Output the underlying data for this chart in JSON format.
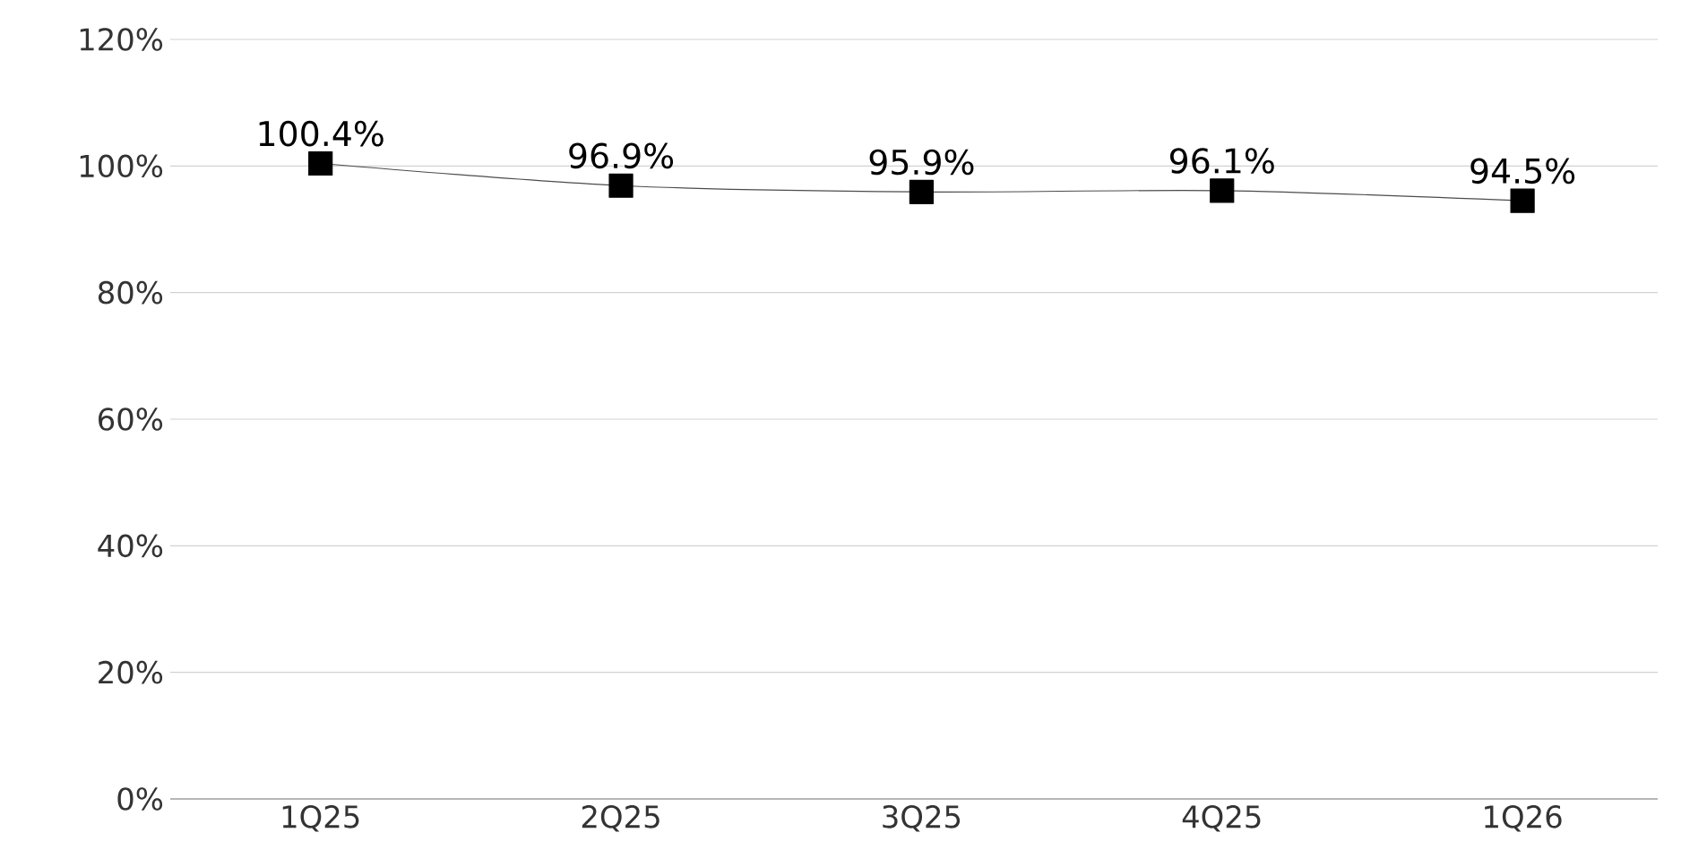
{
  "chart_data": {
    "type": "line",
    "categories": [
      "1Q25",
      "2Q25",
      "3Q25",
      "4Q25",
      "1Q26"
    ],
    "values": [
      100.4,
      96.9,
      95.9,
      96.1,
      94.5
    ],
    "value_labels": [
      "100.4%",
      "96.9%",
      "95.9%",
      "96.1%",
      "94.5%"
    ],
    "color": "#000000",
    "ylim": [
      0,
      120
    ],
    "yticks": [
      {
        "value": 0,
        "label": "0%"
      },
      {
        "value": 20,
        "label": "20%"
      },
      {
        "value": 40,
        "label": "40%"
      },
      {
        "value": 60,
        "label": "60%"
      },
      {
        "value": 80,
        "label": "80%"
      },
      {
        "value": 100,
        "label": "100%"
      },
      {
        "value": 120,
        "label": "120%"
      }
    ],
    "grid": "y",
    "marker": "square",
    "line_style": "solid"
  }
}
